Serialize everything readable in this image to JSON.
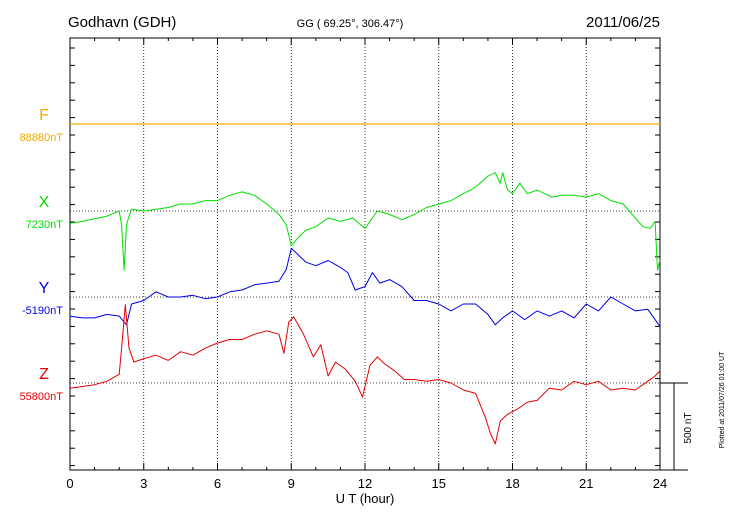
{
  "header": {
    "station": "Godhavn (GDH)",
    "coords": "GG ( 69.25°, 306.47°)",
    "date": "2011/06/25"
  },
  "plotted_note": "Plotted at 2011/07/26 01:00 UT",
  "chart_data": {
    "type": "line",
    "xlabel": "U T (hour)",
    "xlim": [
      0,
      24
    ],
    "xticks": [
      0,
      3,
      6,
      9,
      12,
      15,
      18,
      21,
      24
    ],
    "grid": true,
    "scale_bar": {
      "label": "500 nT",
      "value_nT": 500
    },
    "series": [
      {
        "name": "F",
        "baseline_label": "88880nT",
        "color": "#f5a800",
        "x": [
          0,
          24
        ],
        "y": [
          0,
          0
        ]
      },
      {
        "name": "X",
        "baseline_label": "7230nT",
        "color": "#00e000",
        "x": [
          0,
          0.5,
          1,
          1.5,
          2,
          2.1,
          2.2,
          2.3,
          2.4,
          2.5,
          3,
          3.5,
          4,
          4.5,
          5,
          5.5,
          6,
          6.5,
          7,
          7.5,
          8,
          8.5,
          8.8,
          9,
          9.3,
          9.6,
          10,
          10.5,
          11,
          11.5,
          12,
          12.5,
          13,
          13.5,
          14,
          14.5,
          15,
          15.5,
          16,
          16.3,
          16.6,
          17,
          17.3,
          17.5,
          17.6,
          17.8,
          18,
          18.3,
          18.6,
          19,
          19.3,
          19.6,
          20,
          20.5,
          21,
          21.5,
          22,
          22.5,
          23,
          23.3,
          23.6,
          23.8,
          23.9,
          24
        ],
        "y": [
          -70,
          -60,
          -45,
          -30,
          0,
          -80,
          -340,
          -80,
          -30,
          10,
          0,
          10,
          20,
          40,
          40,
          60,
          60,
          90,
          110,
          90,
          40,
          -20,
          -80,
          -200,
          -150,
          -110,
          -90,
          -40,
          -60,
          -40,
          -100,
          0,
          -20,
          -50,
          -20,
          20,
          40,
          60,
          100,
          120,
          150,
          200,
          220,
          160,
          220,
          120,
          100,
          160,
          100,
          120,
          100,
          80,
          90,
          90,
          80,
          100,
          60,
          40,
          -40,
          -90,
          -100,
          -60,
          -340,
          -280
        ]
      },
      {
        "name": "Y",
        "baseline_label": "-5190nT",
        "color": "#0000e6",
        "x": [
          0,
          0.5,
          1,
          1.5,
          2,
          2.3,
          2.5,
          3,
          3.5,
          4,
          4.5,
          5,
          5.5,
          6,
          6.5,
          7,
          7.5,
          8,
          8.5,
          8.8,
          9,
          9.3,
          9.6,
          10,
          10.5,
          11,
          11.3,
          11.6,
          12,
          12.3,
          12.6,
          13,
          13.5,
          14,
          14.5,
          15,
          15.5,
          16,
          16.5,
          17,
          17.3,
          17.6,
          18,
          18.5,
          19,
          19.5,
          20,
          20.5,
          21,
          21.5,
          22,
          22.5,
          23,
          23.5,
          24
        ],
        "y": [
          -110,
          -120,
          -120,
          -100,
          -110,
          -160,
          -40,
          -20,
          30,
          0,
          0,
          10,
          -10,
          0,
          30,
          40,
          70,
          80,
          90,
          160,
          280,
          240,
          200,
          180,
          210,
          170,
          140,
          40,
          60,
          140,
          80,
          100,
          60,
          -20,
          -20,
          -40,
          -80,
          -40,
          -40,
          -100,
          -160,
          -120,
          -80,
          -130,
          -80,
          -110,
          -80,
          -120,
          -40,
          -80,
          0,
          -40,
          -80,
          -70,
          -170
        ]
      },
      {
        "name": "Z",
        "baseline_label": "55800nT",
        "color": "#e60000",
        "x": [
          0,
          0.5,
          1,
          1.5,
          2,
          2.1,
          2.25,
          2.4,
          2.6,
          3,
          3.5,
          4,
          4.5,
          5,
          5.5,
          6,
          6.5,
          7,
          7.5,
          8,
          8.5,
          8.7,
          8.9,
          9.1,
          9.5,
          9.9,
          10.2,
          10.5,
          10.8,
          11.2,
          11.6,
          11.9,
          12.2,
          12.5,
          12.8,
          13.2,
          13.6,
          14,
          14.5,
          15,
          15.5,
          16,
          16.5,
          16.9,
          17.1,
          17.3,
          17.5,
          17.8,
          18.2,
          18.6,
          19,
          19.5,
          20,
          20.5,
          21,
          21.5,
          22,
          22.5,
          23,
          23.5,
          23.8,
          24
        ],
        "y": [
          -30,
          -20,
          -10,
          10,
          50,
          200,
          450,
          200,
          120,
          140,
          160,
          130,
          180,
          160,
          200,
          230,
          250,
          250,
          280,
          300,
          280,
          170,
          350,
          380,
          280,
          150,
          220,
          40,
          120,
          80,
          10,
          -80,
          100,
          150,
          110,
          70,
          20,
          20,
          10,
          20,
          0,
          -40,
          -60,
          -200,
          -290,
          -350,
          -220,
          -180,
          -150,
          -110,
          -100,
          -30,
          -40,
          10,
          -10,
          10,
          -40,
          -30,
          -40,
          10,
          40,
          70
        ]
      }
    ]
  }
}
